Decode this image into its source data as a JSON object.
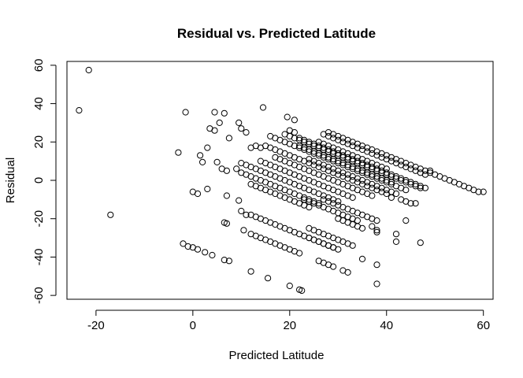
{
  "chart_data": {
    "type": "scatter",
    "title": "Residual vs. Predicted Latitude",
    "xlabel": "Predicted Latitude",
    "ylabel": "Residual",
    "xlim": [
      -26,
      62
    ],
    "ylim": [
      -62,
      62
    ],
    "xticks": [
      -20,
      0,
      20,
      40,
      60
    ],
    "yticks": [
      -60,
      -40,
      -20,
      0,
      20,
      40,
      60
    ],
    "grid": false,
    "legend": "none",
    "marker": "open-circle",
    "points": [
      [
        -23.5,
        36.5
      ],
      [
        -21.5,
        57.5
      ],
      [
        -17,
        -18
      ],
      [
        -3,
        14.5
      ],
      [
        -1.5,
        35.5
      ],
      [
        -2,
        -33
      ],
      [
        -1,
        -34.5
      ],
      [
        0,
        -35
      ],
      [
        1,
        -36
      ],
      [
        2.5,
        -37.5
      ],
      [
        4,
        -39
      ],
      [
        0,
        -6
      ],
      [
        1,
        -7
      ],
      [
        3,
        -4.5
      ],
      [
        2,
        9.5
      ],
      [
        1.5,
        13
      ],
      [
        3,
        17
      ],
      [
        3.5,
        27
      ],
      [
        4.5,
        26
      ],
      [
        4.5,
        35.5
      ],
      [
        5.5,
        30
      ],
      [
        6.5,
        35
      ],
      [
        5,
        9.5
      ],
      [
        6,
        6
      ],
      [
        7,
        5
      ],
      [
        7.5,
        22
      ],
      [
        9.5,
        30
      ],
      [
        10,
        27
      ],
      [
        11,
        25
      ],
      [
        12,
        17
      ],
      [
        13,
        18
      ],
      [
        14,
        17
      ],
      [
        14.5,
        38
      ],
      [
        6.5,
        -22
      ],
      [
        7,
        -22.5
      ],
      [
        7,
        -8
      ],
      [
        9.5,
        -10.5
      ],
      [
        10,
        -16
      ],
      [
        10.5,
        -26
      ],
      [
        11,
        -18
      ],
      [
        6.5,
        -41.5
      ],
      [
        7.5,
        -42
      ],
      [
        12,
        -47.5
      ],
      [
        15.5,
        -51
      ],
      [
        9,
        6
      ],
      [
        10,
        4
      ],
      [
        11,
        3
      ],
      [
        12,
        2
      ],
      [
        13,
        1
      ],
      [
        14,
        0
      ],
      [
        15,
        -1
      ],
      [
        16,
        -2
      ],
      [
        17,
        -3
      ],
      [
        18,
        -4
      ],
      [
        19,
        -5
      ],
      [
        20,
        -6
      ],
      [
        21,
        -7
      ],
      [
        22,
        -8
      ],
      [
        23,
        -9
      ],
      [
        24,
        -10
      ],
      [
        25,
        -11
      ],
      [
        26,
        -12
      ],
      [
        10,
        9
      ],
      [
        11,
        8
      ],
      [
        12,
        7
      ],
      [
        13,
        6
      ],
      [
        14,
        5
      ],
      [
        15,
        4
      ],
      [
        16,
        3
      ],
      [
        17,
        2
      ],
      [
        18,
        1
      ],
      [
        19,
        0
      ],
      [
        20,
        -1
      ],
      [
        21,
        -2
      ],
      [
        22,
        -3
      ],
      [
        23,
        -4
      ],
      [
        24,
        -5
      ],
      [
        25,
        -6
      ],
      [
        26,
        -7
      ],
      [
        27,
        -8
      ],
      [
        28,
        -9
      ],
      [
        29,
        -10
      ],
      [
        30,
        -11
      ],
      [
        12,
        -2
      ],
      [
        13,
        -3
      ],
      [
        14,
        -4
      ],
      [
        15,
        -5
      ],
      [
        16,
        -6
      ],
      [
        17,
        -7
      ],
      [
        18,
        -8
      ],
      [
        19,
        -9
      ],
      [
        20,
        -10
      ],
      [
        21,
        -11
      ],
      [
        22,
        -12
      ],
      [
        23,
        -13
      ],
      [
        24,
        -14
      ],
      [
        12,
        -18
      ],
      [
        13,
        -19
      ],
      [
        14,
        -20
      ],
      [
        15,
        -21
      ],
      [
        16,
        -22
      ],
      [
        17,
        -23
      ],
      [
        18,
        -24
      ],
      [
        19,
        -25
      ],
      [
        20,
        -26
      ],
      [
        21,
        -27
      ],
      [
        22,
        -28
      ],
      [
        23,
        -29
      ],
      [
        24,
        -30
      ],
      [
        25,
        -31
      ],
      [
        26,
        -32
      ],
      [
        27,
        -33
      ],
      [
        28,
        -34
      ],
      [
        29,
        -35
      ],
      [
        12,
        -28
      ],
      [
        13,
        -29
      ],
      [
        14,
        -30
      ],
      [
        15,
        -31
      ],
      [
        16,
        -32
      ],
      [
        17,
        -33
      ],
      [
        18,
        -34
      ],
      [
        19,
        -35
      ],
      [
        20,
        -36
      ],
      [
        21,
        -37
      ],
      [
        22,
        -38
      ],
      [
        14,
        10
      ],
      [
        15,
        9
      ],
      [
        16,
        8
      ],
      [
        17,
        7
      ],
      [
        18,
        6
      ],
      [
        19,
        5
      ],
      [
        20,
        4
      ],
      [
        21,
        3
      ],
      [
        22,
        2
      ],
      [
        23,
        1
      ],
      [
        24,
        0
      ],
      [
        25,
        -1
      ],
      [
        26,
        -2
      ],
      [
        27,
        -3
      ],
      [
        28,
        -4
      ],
      [
        29,
        -5
      ],
      [
        30,
        -6
      ],
      [
        31,
        -7
      ],
      [
        32,
        -8
      ],
      [
        33,
        -9
      ],
      [
        15,
        18
      ],
      [
        16,
        17
      ],
      [
        17,
        16
      ],
      [
        18,
        15
      ],
      [
        19,
        14
      ],
      [
        20,
        13
      ],
      [
        21,
        12
      ],
      [
        22,
        11
      ],
      [
        23,
        10
      ],
      [
        24,
        9
      ],
      [
        25,
        8
      ],
      [
        26,
        7
      ],
      [
        27,
        6
      ],
      [
        28,
        5
      ],
      [
        29,
        4
      ],
      [
        30,
        3
      ],
      [
        31,
        2
      ],
      [
        32,
        1
      ],
      [
        33,
        0
      ],
      [
        34,
        -1
      ],
      [
        35,
        -2
      ],
      [
        36,
        -3
      ],
      [
        37,
        -4
      ],
      [
        38,
        -5
      ],
      [
        39,
        -6
      ],
      [
        40,
        -7
      ],
      [
        16,
        23
      ],
      [
        17,
        22
      ],
      [
        18,
        21
      ],
      [
        19,
        20
      ],
      [
        20,
        19
      ],
      [
        21,
        18
      ],
      [
        22,
        17
      ],
      [
        23,
        16
      ],
      [
        24,
        15
      ],
      [
        25,
        14
      ],
      [
        26,
        13
      ],
      [
        27,
        12
      ],
      [
        28,
        11
      ],
      [
        29,
        10
      ],
      [
        30,
        9
      ],
      [
        31,
        8
      ],
      [
        32,
        7
      ],
      [
        33,
        6
      ],
      [
        34,
        5
      ],
      [
        35,
        4
      ],
      [
        36,
        3
      ],
      [
        37,
        2
      ],
      [
        38,
        1
      ],
      [
        39,
        0
      ],
      [
        40,
        -1
      ],
      [
        41,
        -2
      ],
      [
        42,
        -3
      ],
      [
        43,
        -4
      ],
      [
        44,
        -5
      ],
      [
        17,
        12
      ],
      [
        18,
        11
      ],
      [
        19,
        10
      ],
      [
        20,
        9
      ],
      [
        21,
        8
      ],
      [
        22,
        7
      ],
      [
        23,
        6
      ],
      [
        24,
        5
      ],
      [
        25,
        4
      ],
      [
        26,
        3
      ],
      [
        27,
        2
      ],
      [
        28,
        1
      ],
      [
        29,
        0
      ],
      [
        30,
        -1
      ],
      [
        31,
        -2
      ],
      [
        32,
        -3
      ],
      [
        33,
        -4
      ],
      [
        34,
        -5
      ],
      [
        35,
        -6
      ],
      [
        36,
        -7
      ],
      [
        37,
        -8
      ],
      [
        19,
        24
      ],
      [
        20,
        23
      ],
      [
        21,
        22
      ],
      [
        22,
        21
      ],
      [
        23,
        20
      ],
      [
        24,
        19
      ],
      [
        25,
        18
      ],
      [
        26,
        17
      ],
      [
        27,
        16
      ],
      [
        28,
        15
      ],
      [
        29,
        14
      ],
      [
        30,
        13
      ],
      [
        31,
        12
      ],
      [
        32,
        11
      ],
      [
        33,
        10
      ],
      [
        34,
        9
      ],
      [
        35,
        8
      ],
      [
        36,
        7
      ],
      [
        37,
        6
      ],
      [
        38,
        5
      ],
      [
        39,
        4
      ],
      [
        40,
        3
      ],
      [
        41,
        2
      ],
      [
        42,
        1
      ],
      [
        43,
        0
      ],
      [
        44,
        -1
      ],
      [
        45,
        -2
      ],
      [
        46,
        -3
      ],
      [
        47,
        -4
      ],
      [
        20,
        26
      ],
      [
        21,
        25
      ],
      [
        21,
        31.5
      ],
      [
        19.5,
        33
      ],
      [
        22,
        22
      ],
      [
        23,
        21
      ],
      [
        24,
        20
      ],
      [
        25,
        19
      ],
      [
        26,
        18
      ],
      [
        27,
        17
      ],
      [
        28,
        16
      ],
      [
        29,
        15
      ],
      [
        30,
        14
      ],
      [
        31,
        13
      ],
      [
        32,
        12
      ],
      [
        33,
        11
      ],
      [
        34,
        10
      ],
      [
        35,
        9
      ],
      [
        36,
        8
      ],
      [
        37,
        7
      ],
      [
        38,
        6
      ],
      [
        39,
        5
      ],
      [
        40,
        4
      ],
      [
        41,
        3
      ],
      [
        42,
        2
      ],
      [
        43,
        1
      ],
      [
        44,
        0
      ],
      [
        45,
        -1
      ],
      [
        46,
        -2
      ],
      [
        47,
        -3
      ],
      [
        48,
        -4
      ],
      [
        22,
        18
      ],
      [
        23,
        17
      ],
      [
        24,
        16
      ],
      [
        25,
        15
      ],
      [
        26,
        14
      ],
      [
        27,
        13
      ],
      [
        28,
        12
      ],
      [
        29,
        11
      ],
      [
        30,
        10
      ],
      [
        31,
        9
      ],
      [
        32,
        8
      ],
      [
        33,
        7
      ],
      [
        34,
        6
      ],
      [
        35,
        5
      ],
      [
        36,
        4
      ],
      [
        37,
        3
      ],
      [
        38,
        2
      ],
      [
        39,
        1
      ],
      [
        40,
        0
      ],
      [
        41,
        -1
      ],
      [
        28,
        25
      ],
      [
        29,
        24
      ],
      [
        30,
        23
      ],
      [
        31,
        22
      ],
      [
        32,
        21
      ],
      [
        33,
        20
      ],
      [
        34,
        19
      ],
      [
        35,
        18
      ],
      [
        36,
        17
      ],
      [
        37,
        16
      ],
      [
        38,
        15
      ],
      [
        39,
        14
      ],
      [
        40,
        13
      ],
      [
        41,
        12
      ],
      [
        42,
        11
      ],
      [
        43,
        10
      ],
      [
        44,
        9
      ],
      [
        45,
        8
      ],
      [
        46,
        7
      ],
      [
        47,
        6
      ],
      [
        48,
        5
      ],
      [
        49,
        4
      ],
      [
        50,
        3
      ],
      [
        51,
        2
      ],
      [
        52,
        1
      ],
      [
        53,
        0
      ],
      [
        54,
        -1
      ],
      [
        55,
        -2
      ],
      [
        56,
        -3
      ],
      [
        57,
        -4
      ],
      [
        58,
        -5
      ],
      [
        59,
        -6
      ],
      [
        60,
        -6
      ],
      [
        27,
        24
      ],
      [
        28,
        23
      ],
      [
        29,
        22
      ],
      [
        30,
        21
      ],
      [
        31,
        20
      ],
      [
        32,
        19
      ],
      [
        33,
        18
      ],
      [
        34,
        17
      ],
      [
        35,
        16
      ],
      [
        36,
        15
      ],
      [
        37,
        14
      ],
      [
        38,
        13
      ],
      [
        39,
        12
      ],
      [
        40,
        11
      ],
      [
        41,
        10
      ],
      [
        42,
        9
      ],
      [
        43,
        8
      ],
      [
        44,
        7
      ],
      [
        45,
        6
      ],
      [
        46,
        5
      ],
      [
        47,
        4
      ],
      [
        48,
        3
      ],
      [
        49,
        5
      ],
      [
        26,
        20
      ],
      [
        27,
        19
      ],
      [
        28,
        18
      ],
      [
        29,
        17
      ],
      [
        30,
        16
      ],
      [
        31,
        15
      ],
      [
        32,
        14
      ],
      [
        33,
        13
      ],
      [
        34,
        12
      ],
      [
        35,
        11
      ],
      [
        36,
        10
      ],
      [
        37,
        9
      ],
      [
        38,
        8
      ],
      [
        39,
        7
      ],
      [
        40,
        6
      ],
      [
        24,
        11
      ],
      [
        25,
        10
      ],
      [
        26,
        9
      ],
      [
        27,
        8
      ],
      [
        28,
        7
      ],
      [
        29,
        6
      ],
      [
        30,
        5
      ],
      [
        31,
        4
      ],
      [
        32,
        3
      ],
      [
        33,
        2
      ],
      [
        34,
        1
      ],
      [
        35,
        0
      ],
      [
        36,
        -1
      ],
      [
        37,
        -2
      ],
      [
        38,
        -3
      ],
      [
        39,
        -4
      ],
      [
        40,
        -5
      ],
      [
        41,
        -6
      ],
      [
        42,
        -7
      ],
      [
        23,
        -10
      ],
      [
        24,
        -11
      ],
      [
        25,
        -12
      ],
      [
        26,
        -13
      ],
      [
        27,
        -14
      ],
      [
        28,
        -15
      ],
      [
        29,
        -16
      ],
      [
        30,
        -17
      ],
      [
        31,
        -18
      ],
      [
        32,
        -19
      ],
      [
        33,
        -20
      ],
      [
        34,
        -21
      ],
      [
        27,
        -10
      ],
      [
        28,
        -11
      ],
      [
        29,
        -12
      ],
      [
        30,
        -13
      ],
      [
        31,
        -14
      ],
      [
        32,
        -15
      ],
      [
        33,
        -16
      ],
      [
        34,
        -17
      ],
      [
        35,
        -18
      ],
      [
        36,
        -19
      ],
      [
        37,
        -20
      ],
      [
        38,
        -21
      ],
      [
        30,
        -20
      ],
      [
        31,
        -21
      ],
      [
        32,
        -22
      ],
      [
        33,
        -23
      ],
      [
        34,
        -24
      ],
      [
        24,
        -25
      ],
      [
        25,
        -26
      ],
      [
        26,
        -27
      ],
      [
        27,
        -28
      ],
      [
        28,
        -29
      ],
      [
        29,
        -30
      ],
      [
        30,
        -31
      ],
      [
        31,
        -32
      ],
      [
        32,
        -33
      ],
      [
        33,
        -34
      ],
      [
        24,
        -30
      ],
      [
        25,
        -31
      ],
      [
        26,
        -32
      ],
      [
        27,
        -33
      ],
      [
        28,
        -34
      ],
      [
        29,
        -35
      ],
      [
        30,
        -36
      ],
      [
        26,
        -42
      ],
      [
        27,
        -43
      ],
      [
        28,
        -44
      ],
      [
        29,
        -45
      ],
      [
        31,
        -47
      ],
      [
        32,
        -48
      ],
      [
        20,
        -55
      ],
      [
        22,
        -57
      ],
      [
        22.5,
        -57.5
      ],
      [
        35,
        -41
      ],
      [
        38,
        -44
      ],
      [
        38,
        -54
      ],
      [
        37,
        -24
      ],
      [
        38,
        -26
      ],
      [
        42,
        -28
      ],
      [
        42,
        -32
      ],
      [
        47,
        -32.5
      ],
      [
        41,
        -9
      ],
      [
        43,
        -10
      ],
      [
        44,
        -11
      ],
      [
        45,
        -12
      ],
      [
        46,
        -12
      ],
      [
        44,
        -21
      ],
      [
        35,
        -25
      ],
      [
        38,
        -27
      ]
    ]
  }
}
